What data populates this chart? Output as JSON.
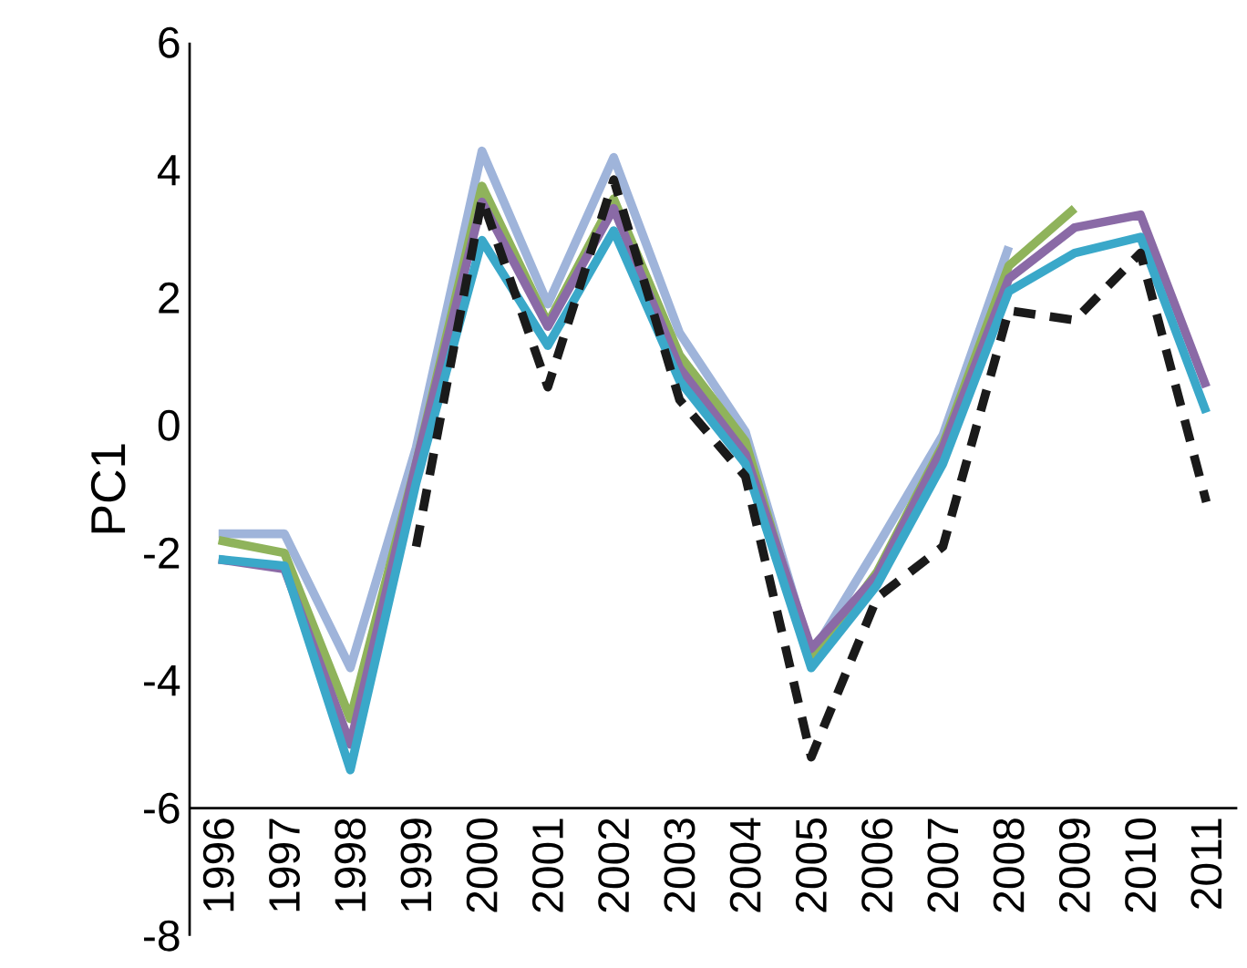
{
  "chart_data": {
    "type": "line",
    "ylabel": "PC1",
    "categories": [
      "1996",
      "1997",
      "1998",
      "1999",
      "2000",
      "2001",
      "2002",
      "2003",
      "2004",
      "2005",
      "2006",
      "2007",
      "2008",
      "2009",
      "2010",
      "2011"
    ],
    "ylim": [
      -8,
      6
    ],
    "yticks": [
      -8,
      -6,
      -4,
      -2,
      0,
      2,
      4,
      6
    ],
    "marker": "none",
    "series": [
      {
        "color": "#9fb4da",
        "line_style": "solid",
        "values": [
          -1.7,
          -1.7,
          -3.8,
          -0.35,
          4.3,
          1.9,
          4.2,
          1.45,
          -0.1,
          -3.6,
          -1.9,
          -0.15,
          2.8,
          null,
          null,
          null
        ]
      },
      {
        "color": "#8fb35b",
        "line_style": "solid",
        "values": [
          -1.8,
          -2.0,
          -4.6,
          -0.6,
          3.75,
          1.6,
          3.55,
          1.1,
          -0.25,
          -3.7,
          -2.3,
          -0.3,
          2.5,
          3.4,
          null,
          null
        ]
      },
      {
        "color": "#8a6aa6",
        "line_style": "solid",
        "values": [
          -2.1,
          -2.25,
          -5.0,
          -0.6,
          3.5,
          1.55,
          3.4,
          0.9,
          -0.45,
          -3.5,
          -2.35,
          -0.35,
          2.3,
          3.1,
          3.3,
          0.6
        ]
      },
      {
        "color": "#3aa8c9",
        "line_style": "solid",
        "values": [
          -2.1,
          -2.2,
          -5.4,
          -0.9,
          2.9,
          1.25,
          3.05,
          0.7,
          -0.6,
          -3.8,
          -2.5,
          -0.6,
          2.1,
          2.7,
          2.95,
          0.2
        ]
      },
      {
        "color": "#1a1a1a",
        "line_style": "dashed",
        "values": [
          null,
          null,
          null,
          -1.9,
          3.55,
          0.6,
          3.85,
          0.4,
          -0.8,
          -5.2,
          -2.7,
          -1.9,
          1.8,
          1.65,
          2.7,
          -1.2
        ]
      }
    ]
  }
}
